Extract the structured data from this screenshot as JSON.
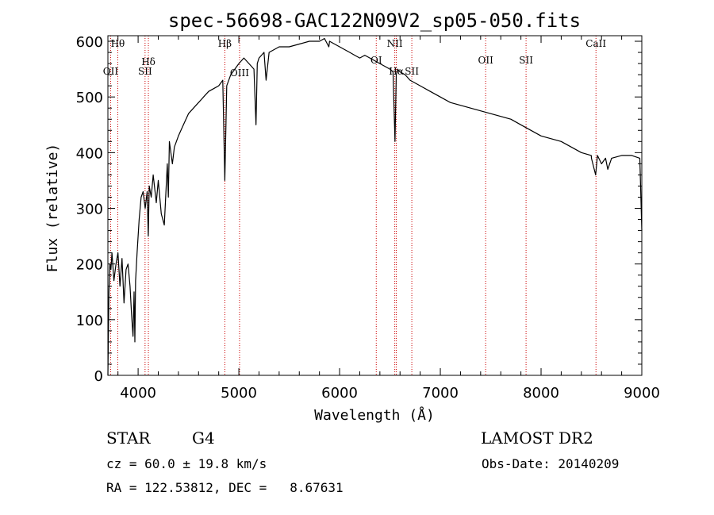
{
  "chart_data": {
    "type": "line",
    "title": "spec-56698-GAC122N09V2_sp05-050.fits",
    "xlabel": "Wavelength (Å)",
    "ylabel": "Flux (relative)",
    "xlim": [
      3700,
      9000
    ],
    "ylim": [
      0,
      610
    ],
    "x_ticks": [
      4000,
      5000,
      6000,
      7000,
      8000,
      9000
    ],
    "y_ticks": [
      0,
      100,
      200,
      300,
      400,
      500,
      600
    ],
    "grid": false,
    "line_color": "#000000",
    "marker_color": "#cc0000",
    "series": [
      {
        "x": [
          3700,
          3710,
          3720,
          3730,
          3740,
          3760,
          3780,
          3800,
          3820,
          3840,
          3860,
          3880,
          3900,
          3920,
          3935,
          3950,
          3960,
          3968,
          3975,
          3990,
          4010,
          4030,
          4050,
          4070,
          4090,
          4101,
          4110,
          4130,
          4150,
          4180,
          4200,
          4230,
          4260,
          4290,
          4300,
          4310,
          4340,
          4360,
          4400,
          4450,
          4500,
          4550,
          4600,
          4650,
          4700,
          4750,
          4800,
          4840,
          4861,
          4880,
          4920,
          4960,
          5000,
          5050,
          5100,
          5150,
          5170,
          5183,
          5200,
          5250,
          5270,
          5300,
          5400,
          5500,
          5600,
          5700,
          5800,
          5850,
          5893,
          5900,
          5950,
          6000,
          6050,
          6100,
          6150,
          6200,
          6250,
          6300,
          6350,
          6400,
          6450,
          6500,
          6530,
          6550,
          6563,
          6575,
          6600,
          6650,
          6700,
          6750,
          6800,
          6900,
          7000,
          7100,
          7200,
          7300,
          7400,
          7500,
          7600,
          7700,
          7800,
          7900,
          8000,
          8100,
          8200,
          8300,
          8400,
          8498,
          8500,
          8542,
          8560,
          8600,
          8640,
          8662,
          8700,
          8800,
          8900,
          8980,
          9000
        ],
        "y": [
          0,
          150,
          200,
          190,
          220,
          170,
          200,
          220,
          160,
          210,
          130,
          190,
          200,
          160,
          110,
          70,
          150,
          60,
          170,
          220,
          280,
          320,
          330,
          300,
          330,
          250,
          340,
          320,
          360,
          310,
          350,
          290,
          270,
          380,
          320,
          420,
          380,
          410,
          430,
          450,
          470,
          480,
          490,
          500,
          510,
          515,
          520,
          530,
          350,
          520,
          540,
          550,
          560,
          570,
          560,
          550,
          450,
          560,
          570,
          580,
          530,
          580,
          590,
          590,
          595,
          600,
          600,
          605,
          590,
          600,
          595,
          590,
          585,
          580,
          575,
          570,
          575,
          570,
          565,
          560,
          555,
          550,
          545,
          420,
          540,
          550,
          545,
          540,
          530,
          525,
          520,
          510,
          500,
          490,
          485,
          480,
          475,
          470,
          465,
          460,
          450,
          440,
          430,
          425,
          420,
          410,
          400,
          395,
          390,
          360,
          395,
          380,
          390,
          370,
          390,
          395,
          395,
          390,
          260
        ]
      }
    ],
    "line_markers": [
      {
        "label": "Hθ",
        "x": 3798,
        "y": 590
      },
      {
        "label": "OII",
        "x": 3727,
        "y": 540
      },
      {
        "label": "Hδ",
        "x": 4102,
        "y": 557
      },
      {
        "label": "SII",
        "x": 4069,
        "y": 540
      },
      {
        "label": "Hβ",
        "x": 4861,
        "y": 590
      },
      {
        "label": "OIII",
        "x": 5007,
        "y": 537
      },
      {
        "label": "OI",
        "x": 6364,
        "y": 560
      },
      {
        "label": "NII",
        "x": 6548,
        "y": 590
      },
      {
        "label": "Hα",
        "x": 6563,
        "y": 540
      },
      {
        "label": "SII",
        "x": 6717,
        "y": 540
      },
      {
        "label": "OII",
        "x": 7450,
        "y": 560
      },
      {
        "label": "SII",
        "x": 7851,
        "y": 560
      },
      {
        "label": "CaII",
        "x": 8545,
        "y": 590
      }
    ]
  },
  "info": {
    "class_label": "STAR",
    "subclass_label": "G4",
    "survey_label": "LAMOST DR2",
    "cz_text": "cz = 60.0 ± 19.8 km/s",
    "obs_date_text": "Obs-Date: 20140209",
    "coords_text": "RA = 122.53812, DEC =   8.67631"
  }
}
